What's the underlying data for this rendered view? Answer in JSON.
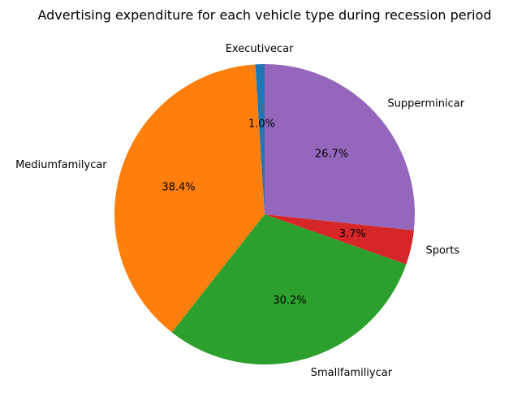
{
  "chart_data": {
    "type": "pie",
    "title": "Advertising expenditure for each vehicle type during recession period",
    "categories": [
      "Executivecar",
      "Mediumfamilycar",
      "Smallfamiliycar",
      "Sports",
      "Supperminicar"
    ],
    "values": [
      1.0,
      38.4,
      30.2,
      3.7,
      26.7
    ],
    "percent_labels": [
      "1.0%",
      "38.4%",
      "30.2%",
      "3.7%",
      "26.7%"
    ],
    "colors": [
      "#1f77b4",
      "#ff7f0e",
      "#2ca02c",
      "#d62728",
      "#9467bd"
    ],
    "start_angle_deg": 90,
    "direction": "counterclockwise",
    "legend": "none"
  }
}
